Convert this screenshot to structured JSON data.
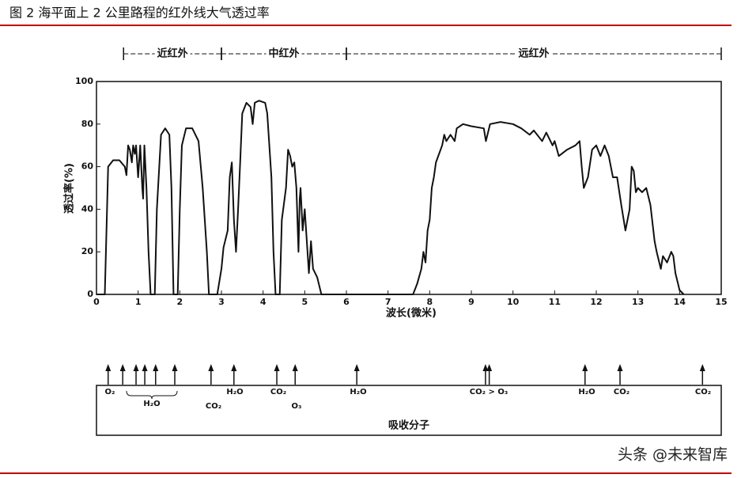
{
  "chart_data": {
    "type": "line",
    "title": "图 2 海平面上 2 公里路程的红外线大气透过率",
    "xlabel": "波长(微米)",
    "ylabel": "透过率(%)",
    "xlim": [
      0,
      15
    ],
    "xticks": [
      0,
      1,
      2,
      3,
      4,
      5,
      6,
      7,
      8,
      9,
      10,
      11,
      12,
      13,
      14,
      15
    ],
    "ylim": [
      0,
      100
    ],
    "yticks": [
      0,
      20,
      40,
      60,
      80,
      100
    ],
    "bands": [
      {
        "label": "近红外",
        "range": [
          0.65,
          3
        ]
      },
      {
        "label": "中红外",
        "range": [
          3,
          6
        ]
      },
      {
        "label": "远红外",
        "range": [
          6,
          15
        ]
      }
    ],
    "series": [
      {
        "color": "#111111",
        "x": [
          0,
          0.2,
          0.28,
          0.4,
          0.55,
          0.68,
          0.72,
          0.76,
          0.8,
          0.85,
          0.88,
          0.92,
          0.95,
          1.0,
          1.05,
          1.1,
          1.12,
          1.15,
          1.2,
          1.25,
          1.3,
          1.4,
          1.45,
          1.55,
          1.65,
          1.75,
          1.8,
          1.85,
          1.95,
          2.0,
          2.05,
          2.15,
          2.3,
          2.45,
          2.55,
          2.65,
          2.7,
          2.9,
          3.0,
          3.05,
          3.15,
          3.2,
          3.25,
          3.3,
          3.35,
          3.4,
          3.45,
          3.5,
          3.6,
          3.7,
          3.75,
          3.8,
          3.9,
          4.05,
          4.1,
          4.2,
          4.25,
          4.3,
          4.4,
          4.45,
          4.55,
          4.6,
          4.65,
          4.7,
          4.75,
          4.8,
          4.85,
          4.88,
          4.9,
          4.95,
          5.0,
          5.05,
          5.1,
          5.15,
          5.2,
          5.3,
          5.4,
          7.6,
          7.7,
          7.8,
          7.85,
          7.9,
          7.95,
          8.0,
          8.05,
          8.1,
          8.15,
          8.3,
          8.35,
          8.4,
          8.5,
          8.6,
          8.65,
          8.8,
          9.0,
          9.3,
          9.35,
          9.45,
          9.7,
          10.0,
          10.2,
          10.4,
          10.5,
          10.7,
          10.8,
          10.95,
          11.0,
          11.1,
          11.3,
          11.5,
          11.6,
          11.65,
          11.7,
          11.8,
          11.9,
          12.0,
          12.1,
          12.2,
          12.3,
          12.4,
          12.5,
          12.6,
          12.7,
          12.8,
          12.85,
          12.9,
          12.95,
          13.0,
          13.1,
          13.2,
          13.3,
          13.4,
          13.45,
          13.55,
          13.6,
          13.7,
          13.8,
          13.85,
          13.9,
          14.0,
          14.1
        ],
        "values": [
          0,
          0,
          60,
          63,
          63,
          60,
          56,
          70,
          68,
          62,
          70,
          66,
          70,
          55,
          70,
          50,
          45,
          70,
          50,
          20,
          0,
          0,
          40,
          75,
          78,
          75,
          50,
          0,
          0,
          40,
          70,
          78,
          78,
          72,
          50,
          20,
          0,
          0,
          12,
          22,
          30,
          55,
          62,
          35,
          20,
          40,
          62,
          85,
          90,
          88,
          80,
          90,
          91,
          90,
          85,
          55,
          20,
          0,
          0,
          35,
          50,
          68,
          65,
          60,
          62,
          50,
          20,
          45,
          50,
          30,
          40,
          25,
          10,
          25,
          12,
          8,
          0,
          0,
          5,
          12,
          20,
          15,
          30,
          35,
          50,
          55,
          62,
          70,
          75,
          72,
          75,
          72,
          78,
          80,
          79,
          78,
          72,
          80,
          81,
          80,
          78,
          75,
          77,
          72,
          76,
          70,
          72,
          65,
          68,
          70,
          72,
          60,
          50,
          55,
          68,
          70,
          65,
          70,
          65,
          55,
          55,
          42,
          30,
          40,
          60,
          58,
          48,
          50,
          48,
          50,
          42,
          25,
          20,
          12,
          18,
          15,
          20,
          18,
          10,
          2,
          0
        ]
      }
    ]
  },
  "absorption": {
    "label": "吸收分子",
    "arrows": [
      0.28,
      0.63,
      0.95,
      1.16,
      1.42,
      1.88,
      2.75,
      3.3,
      4.33,
      4.77,
      6.25,
      9.34,
      9.43,
      11.73,
      12.57,
      14.55
    ],
    "molecules": [
      "O₂",
      "H₂O",
      "CO₂",
      "H₂O",
      "CO₂",
      "O₃",
      "H₂O",
      "CO₂ > O₃",
      "H₂O",
      "CO₂",
      "CO₂"
    ]
  },
  "watermark": "头条 @未来智库"
}
